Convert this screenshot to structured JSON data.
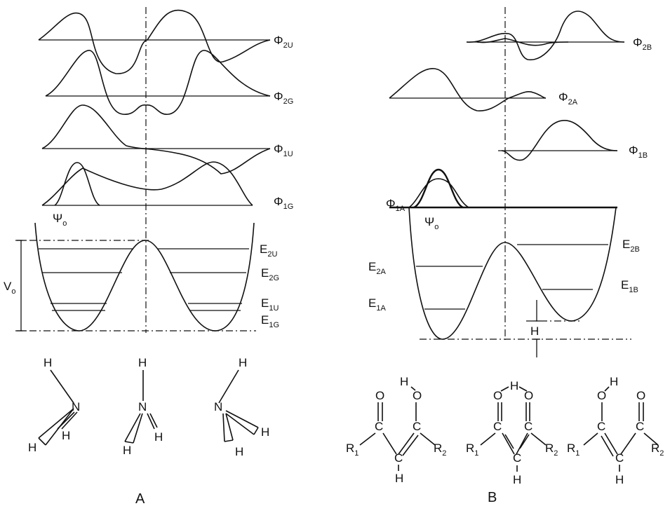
{
  "panel_a": {
    "letter": "A",
    "wavefunctions": [
      {
        "base": "Φ",
        "sub": "2U"
      },
      {
        "base": "Φ",
        "sub": "2G"
      },
      {
        "base": "Φ",
        "sub": "1U"
      },
      {
        "base": "Φ",
        "sub": "1G"
      }
    ],
    "psi": {
      "base": "Ψ",
      "sub": "o"
    },
    "energies": [
      {
        "base": "E",
        "sub": "2U"
      },
      {
        "base": "E",
        "sub": "2G"
      },
      {
        "base": "E",
        "sub": "1U"
      },
      {
        "base": "E",
        "sub": "1G"
      }
    ],
    "barrier": {
      "base": "V",
      "sub": "o"
    },
    "atoms": {
      "H": "H",
      "N": "N"
    }
  },
  "panel_b": {
    "letter": "B",
    "wavefunctions": [
      {
        "base": "Φ",
        "sub": "2B"
      },
      {
        "base": "Φ",
        "sub": "2A"
      },
      {
        "base": "Φ",
        "sub": "1B"
      },
      {
        "base": "Φ",
        "sub": "1A"
      }
    ],
    "psi": {
      "base": "Ψ",
      "sub": "o"
    },
    "energies": [
      {
        "base": "E",
        "sub": "2B"
      },
      {
        "base": "E",
        "sub": "2A"
      },
      {
        "base": "E",
        "sub": "1B"
      },
      {
        "base": "E",
        "sub": "1A"
      }
    ],
    "asymmetry": "H",
    "atoms": {
      "H": "H",
      "O": "O",
      "C": "C",
      "R": "R",
      "r1": "1",
      "r2": "2"
    }
  }
}
